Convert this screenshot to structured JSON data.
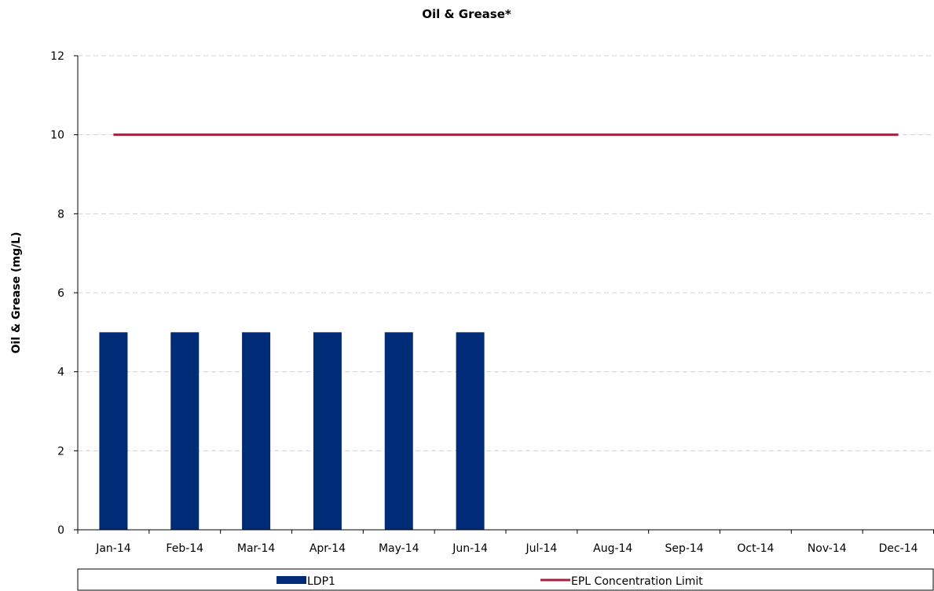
{
  "chart_data": {
    "type": "bar",
    "title": "Oil & Grease*",
    "xlabel": "",
    "ylabel": "Oil & Grease  (mg/L)",
    "ylim": [
      0,
      12
    ],
    "yticks": [
      0,
      2,
      4,
      6,
      8,
      10,
      12
    ],
    "categories": [
      "Jan-14",
      "Feb-14",
      "Mar-14",
      "Apr-14",
      "May-14",
      "Jun-14",
      "Jul-14",
      "Aug-14",
      "Sep-14",
      "Oct-14",
      "Nov-14",
      "Dec-14"
    ],
    "series": [
      {
        "name": "LDP1",
        "type": "bar",
        "color": "#002C77",
        "values": [
          5,
          5,
          5,
          5,
          5,
          5,
          null,
          null,
          null,
          null,
          null,
          null
        ]
      },
      {
        "name": "EPL Concentration Limit",
        "type": "line",
        "color": "#A6203F",
        "values": [
          10,
          10,
          10,
          10,
          10,
          10,
          10,
          10,
          10,
          10,
          10,
          10
        ]
      }
    ],
    "grid": "horizontal dashed",
    "legend_position": "bottom"
  }
}
